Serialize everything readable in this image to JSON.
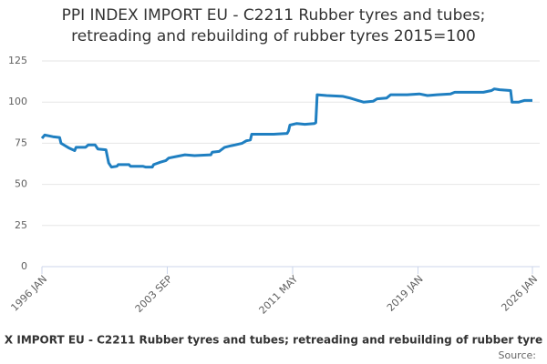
{
  "chart_data": {
    "type": "line",
    "title": [
      "PPI INDEX IMPORT EU - C2211 Rubber tyres and tubes;",
      "retreading and rebuilding of rubber tyres 2015=100"
    ],
    "x": [
      "1996 JAN",
      "1996 MAR",
      "1996 SEP",
      "1997 FEB",
      "1997 MAR",
      "1997 SEP",
      "1998 JAN",
      "1998 FEB",
      "1998 SEP",
      "1998 NOV",
      "1999 APR",
      "1999 JUN",
      "1999 DEC",
      "2000 FEB",
      "2000 APR",
      "2000 AUG",
      "2000 SEP",
      "2001 MAY",
      "2001 JUN",
      "2002 MAR",
      "2002 MAY",
      "2002 OCT",
      "2002 NOV",
      "2003 APR",
      "2003 AUG",
      "2003 OCT",
      "2004 APR",
      "2004 OCT",
      "2005 MAY",
      "2006 MAY",
      "2006 JUN",
      "2006 NOV",
      "2007 MAR",
      "2007 AUG",
      "2007 NOV",
      "2008 APR",
      "2008 JUL",
      "2008 OCT",
      "2008 NOV",
      "2010 MAR",
      "2011 JAN",
      "2011 FEB",
      "2011 MAR",
      "2011 AUG",
      "2012 FEB",
      "2012 SEP",
      "2012 OCT",
      "2012 NOV",
      "2013 JUN",
      "2014 JUN",
      "2014 NOV",
      "2015 MAY",
      "2015 SEP",
      "2016 APR",
      "2016 JUL",
      "2017 FEB",
      "2017 MAY",
      "2018 MAY",
      "2019 FEB",
      "2019 AUG",
      "2020 MAR",
      "2021 JAN",
      "2021 APR",
      "2023 JAN",
      "2023 JUL",
      "2023 SEP",
      "2024 JAN",
      "2024 SEP",
      "2024 OCT",
      "2025 MAR",
      "2025 JUL",
      "2026 JAN"
    ],
    "series": [
      {
        "name": "X IMPORT EU - C2211 Rubber tyres and tubes; retreading and rebuilding of rubber tyre",
        "color": "#1f7fc1",
        "values": [
          78,
          80,
          79,
          78.5,
          75,
          72,
          70.5,
          72.5,
          72.5,
          74,
          74,
          71.5,
          71,
          63,
          60.5,
          61,
          62,
          62,
          61,
          61,
          60.5,
          60.5,
          62,
          63.5,
          64.5,
          66,
          67,
          68,
          67.5,
          68,
          69.5,
          70,
          72.5,
          73.5,
          74,
          75,
          76.5,
          77,
          80.5,
          80.5,
          81,
          82.5,
          86,
          87,
          86.5,
          87,
          87.5,
          104.5,
          104,
          103.5,
          102.5,
          101,
          100,
          100.5,
          102,
          102.5,
          104.5,
          104.5,
          105,
          104,
          104.5,
          105,
          106,
          106,
          107,
          108,
          107.5,
          107,
          100,
          100,
          101,
          101
        ]
      }
    ],
    "xlim": [
      "1996 JAN",
      "2026 JAN"
    ],
    "xticks": [
      "1996 JAN",
      "2003 SEP",
      "2011 MAY",
      "2019 JAN",
      "2026 JAN"
    ],
    "ylim": [
      0,
      125
    ],
    "yticks": [
      0,
      25,
      50,
      75,
      100,
      125
    ],
    "grid": true,
    "source": "Source:"
  }
}
